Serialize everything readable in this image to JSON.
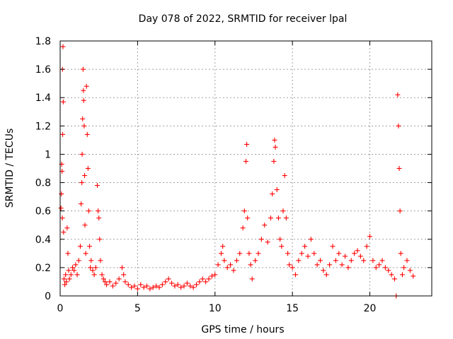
{
  "chart_data": {
    "type": "scatter",
    "title": "Day 078 of 2022, SRMTID for receiver lpal",
    "xlabel": "GPS time / hours",
    "ylabel": "SRMTID / TECUs",
    "xlim": [
      0,
      24
    ],
    "ylim": [
      0,
      1.8
    ],
    "x_ticks": [
      0,
      5,
      10,
      15,
      20
    ],
    "y_ticks": [
      0,
      0.2,
      0.4,
      0.6,
      0.8,
      1,
      1.2,
      1.4,
      1.6,
      1.8
    ],
    "x_tick_labels": [
      "0",
      "5",
      "10",
      "15",
      "20"
    ],
    "y_tick_labels": [
      "0",
      "0.2",
      "0.4",
      "0.6",
      "0.8",
      "1",
      "1.2",
      "1.4",
      "1.6",
      "1.8"
    ],
    "grid": true,
    "marker": "+",
    "color": "#ff0000",
    "series": [
      {
        "name": "lpal",
        "points": [
          [
            0.05,
            0.62
          ],
          [
            0.08,
            0.72
          ],
          [
            0.1,
            0.93
          ],
          [
            0.12,
            0.88
          ],
          [
            0.14,
            0.55
          ],
          [
            0.15,
            1.6
          ],
          [
            0.16,
            1.14
          ],
          [
            0.18,
            1.76
          ],
          [
            0.2,
            1.37
          ],
          [
            0.22,
            0.45
          ],
          [
            0.25,
            0.12
          ],
          [
            0.3,
            0.08
          ],
          [
            0.35,
            0.15
          ],
          [
            0.4,
            0.1
          ],
          [
            0.45,
            0.48
          ],
          [
            0.5,
            0.3
          ],
          [
            0.55,
            0.18
          ],
          [
            0.6,
            0.12
          ],
          [
            0.7,
            0.15
          ],
          [
            0.8,
            0.2
          ],
          [
            0.9,
            0.18
          ],
          [
            1.0,
            0.22
          ],
          [
            1.1,
            0.15
          ],
          [
            1.2,
            0.25
          ],
          [
            1.3,
            0.35
          ],
          [
            1.35,
            0.65
          ],
          [
            1.4,
            0.8
          ],
          [
            1.42,
            1.0
          ],
          [
            1.45,
            1.25
          ],
          [
            1.48,
            1.6
          ],
          [
            1.5,
            1.45
          ],
          [
            1.52,
            1.38
          ],
          [
            1.55,
            1.2
          ],
          [
            1.58,
            0.85
          ],
          [
            1.6,
            0.5
          ],
          [
            1.65,
            0.3
          ],
          [
            1.7,
            1.48
          ],
          [
            1.75,
            1.14
          ],
          [
            1.8,
            0.9
          ],
          [
            1.85,
            0.6
          ],
          [
            1.9,
            0.35
          ],
          [
            1.95,
            0.2
          ],
          [
            2.0,
            0.25
          ],
          [
            2.1,
            0.18
          ],
          [
            2.2,
            0.15
          ],
          [
            2.3,
            0.2
          ],
          [
            2.4,
            0.78
          ],
          [
            2.45,
            0.6
          ],
          [
            2.5,
            0.55
          ],
          [
            2.55,
            0.4
          ],
          [
            2.6,
            0.25
          ],
          [
            2.7,
            0.15
          ],
          [
            2.8,
            0.12
          ],
          [
            2.9,
            0.1
          ],
          [
            3.0,
            0.08
          ],
          [
            3.2,
            0.1
          ],
          [
            3.4,
            0.07
          ],
          [
            3.6,
            0.09
          ],
          [
            3.8,
            0.12
          ],
          [
            4.0,
            0.2
          ],
          [
            4.1,
            0.15
          ],
          [
            4.2,
            0.1
          ],
          [
            4.4,
            0.08
          ],
          [
            4.6,
            0.06
          ],
          [
            4.8,
            0.07
          ],
          [
            5.0,
            0.05
          ],
          [
            5.2,
            0.08
          ],
          [
            5.4,
            0.06
          ],
          [
            5.6,
            0.07
          ],
          [
            5.8,
            0.05
          ],
          [
            6.0,
            0.06
          ],
          [
            6.2,
            0.07
          ],
          [
            6.4,
            0.06
          ],
          [
            6.6,
            0.08
          ],
          [
            6.8,
            0.1
          ],
          [
            7.0,
            0.12
          ],
          [
            7.2,
            0.09
          ],
          [
            7.4,
            0.07
          ],
          [
            7.6,
            0.08
          ],
          [
            7.8,
            0.06
          ],
          [
            8.0,
            0.07
          ],
          [
            8.2,
            0.09
          ],
          [
            8.4,
            0.07
          ],
          [
            8.6,
            0.06
          ],
          [
            8.8,
            0.08
          ],
          [
            9.0,
            0.1
          ],
          [
            9.2,
            0.12
          ],
          [
            9.4,
            0.1
          ],
          [
            9.6,
            0.12
          ],
          [
            9.8,
            0.14
          ],
          [
            10.0,
            0.15
          ],
          [
            10.2,
            0.22
          ],
          [
            10.4,
            0.3
          ],
          [
            10.5,
            0.35
          ],
          [
            10.6,
            0.25
          ],
          [
            10.8,
            0.2
          ],
          [
            11.0,
            0.22
          ],
          [
            11.2,
            0.18
          ],
          [
            11.4,
            0.25
          ],
          [
            11.6,
            0.3
          ],
          [
            11.8,
            0.48
          ],
          [
            11.9,
            0.6
          ],
          [
            12.0,
            0.95
          ],
          [
            12.05,
            1.07
          ],
          [
            12.1,
            0.55
          ],
          [
            12.2,
            0.3
          ],
          [
            12.3,
            0.22
          ],
          [
            12.4,
            0.12
          ],
          [
            12.6,
            0.25
          ],
          [
            12.8,
            0.3
          ],
          [
            13.0,
            0.4
          ],
          [
            13.2,
            0.5
          ],
          [
            13.4,
            0.38
          ],
          [
            13.6,
            0.55
          ],
          [
            13.7,
            0.72
          ],
          [
            13.8,
            0.95
          ],
          [
            13.85,
            1.1
          ],
          [
            13.9,
            1.05
          ],
          [
            14.0,
            0.75
          ],
          [
            14.1,
            0.55
          ],
          [
            14.2,
            0.4
          ],
          [
            14.3,
            0.35
          ],
          [
            14.4,
            0.6
          ],
          [
            14.5,
            0.85
          ],
          [
            14.6,
            0.55
          ],
          [
            14.7,
            0.3
          ],
          [
            14.8,
            0.22
          ],
          [
            15.0,
            0.2
          ],
          [
            15.2,
            0.15
          ],
          [
            15.4,
            0.25
          ],
          [
            15.6,
            0.3
          ],
          [
            15.8,
            0.35
          ],
          [
            16.0,
            0.28
          ],
          [
            16.2,
            0.4
          ],
          [
            16.4,
            0.3
          ],
          [
            16.6,
            0.22
          ],
          [
            16.8,
            0.25
          ],
          [
            17.0,
            0.18
          ],
          [
            17.2,
            0.15
          ],
          [
            17.4,
            0.22
          ],
          [
            17.6,
            0.35
          ],
          [
            17.8,
            0.25
          ],
          [
            18.0,
            0.3
          ],
          [
            18.2,
            0.22
          ],
          [
            18.4,
            0.28
          ],
          [
            18.6,
            0.2
          ],
          [
            18.8,
            0.25
          ],
          [
            19.0,
            0.3
          ],
          [
            19.2,
            0.32
          ],
          [
            19.4,
            0.28
          ],
          [
            19.6,
            0.25
          ],
          [
            19.8,
            0.35
          ],
          [
            20.0,
            0.42
          ],
          [
            20.2,
            0.25
          ],
          [
            20.4,
            0.2
          ],
          [
            20.6,
            0.22
          ],
          [
            20.8,
            0.25
          ],
          [
            21.0,
            0.2
          ],
          [
            21.2,
            0.18
          ],
          [
            21.4,
            0.15
          ],
          [
            21.6,
            0.12
          ],
          [
            21.7,
            0.0
          ],
          [
            21.8,
            1.42
          ],
          [
            21.85,
            1.2
          ],
          [
            21.9,
            0.9
          ],
          [
            21.95,
            0.6
          ],
          [
            22.0,
            0.3
          ],
          [
            22.1,
            0.15
          ],
          [
            22.2,
            0.2
          ],
          [
            22.4,
            0.25
          ],
          [
            22.6,
            0.18
          ],
          [
            22.8,
            0.14
          ]
        ]
      }
    ]
  }
}
